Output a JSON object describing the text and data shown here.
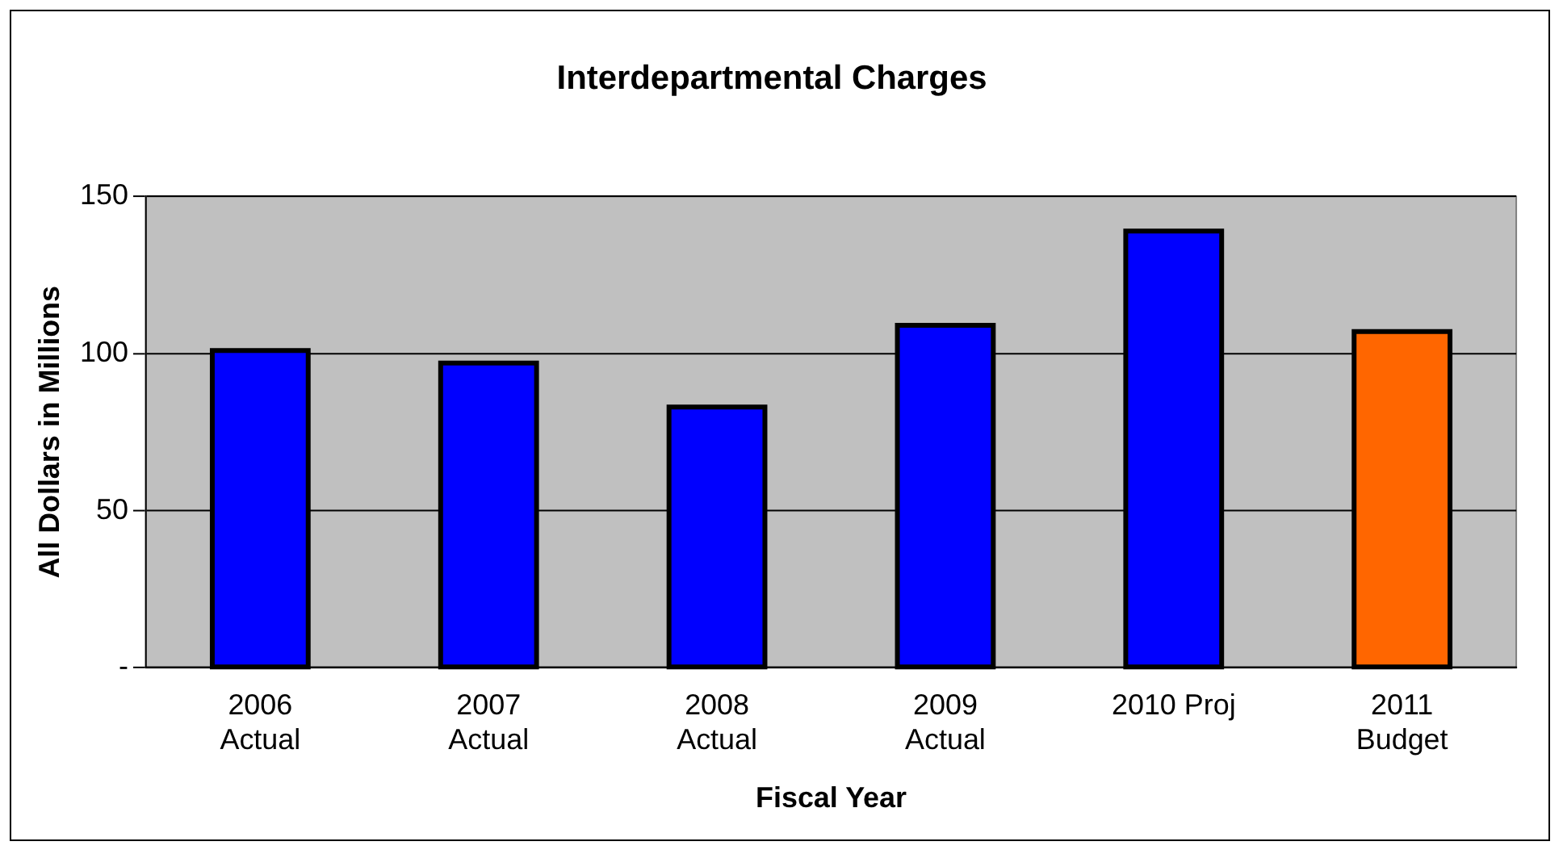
{
  "chart_data": {
    "type": "bar",
    "title": "Interdepartmental Charges",
    "xlabel": "Fiscal Year",
    "ylabel": "All Dollars in Millions",
    "categories": [
      "2006\nActual",
      "2007\nActual",
      "2008\nActual",
      "2009\nActual",
      "2010 Proj",
      "2011\nBudget"
    ],
    "values": [
      101,
      97,
      83,
      109,
      139,
      107
    ],
    "colors": [
      "#0000ff",
      "#0000ff",
      "#0000ff",
      "#0000ff",
      "#0000ff",
      "#ff6600"
    ],
    "ylim": [
      0,
      150
    ],
    "yticks": [
      {
        "value": 0,
        "label": "-"
      },
      50,
      100,
      150
    ],
    "grid": "y",
    "legend": false
  }
}
